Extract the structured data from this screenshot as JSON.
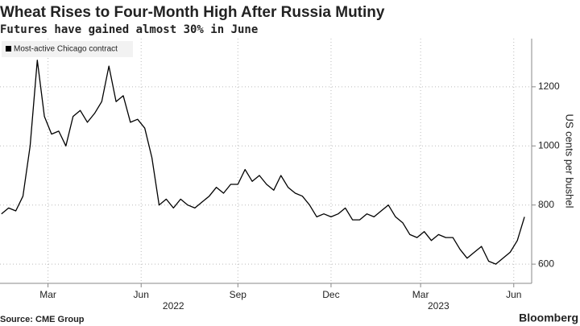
{
  "chart_data": {
    "type": "line",
    "title": "Wheat Rises to Four-Month High After Russia Mutiny",
    "subtitle": "Futures have gained almost 30% in June",
    "y_label": "US cents per bushel",
    "source": "Source: CME Group",
    "brand": "Bloomberg",
    "x": [
      0,
      1,
      2,
      3,
      4,
      5,
      6,
      7,
      8,
      9,
      10,
      11,
      12,
      13,
      14,
      15,
      16,
      17,
      18,
      19,
      20,
      21,
      22,
      23,
      24,
      25,
      26,
      27,
      28,
      29,
      30,
      31,
      32,
      33,
      34,
      35,
      36,
      37,
      38,
      39,
      40,
      41,
      42,
      43,
      44,
      45,
      46,
      47,
      48,
      49,
      50,
      51,
      52,
      53,
      54,
      55,
      56,
      57,
      58,
      59,
      60,
      61,
      62,
      63,
      64,
      65,
      66,
      67,
      68,
      69,
      70,
      71,
      72,
      73
    ],
    "series": [
      {
        "name": "Most-active Chicago contract",
        "color": "#000000",
        "values": [
          770,
          790,
          780,
          830,
          1000,
          1290,
          1100,
          1040,
          1050,
          1000,
          1100,
          1120,
          1080,
          1110,
          1150,
          1270,
          1150,
          1170,
          1080,
          1090,
          1060,
          960,
          800,
          820,
          790,
          820,
          800,
          790,
          810,
          830,
          860,
          840,
          870,
          870,
          920,
          880,
          900,
          870,
          850,
          900,
          860,
          840,
          830,
          800,
          760,
          770,
          760,
          770,
          790,
          750,
          750,
          770,
          760,
          780,
          800,
          760,
          740,
          700,
          690,
          710,
          680,
          700,
          690,
          690,
          650,
          620,
          640,
          660,
          610,
          600,
          620,
          640,
          680,
          760
        ]
      }
    ],
    "xlim": [
      -0.2,
      74
    ],
    "xticks": [
      {
        "value": 6.5,
        "label": "Mar"
      },
      {
        "value": 19.5,
        "label": "Jun"
      },
      {
        "value": 33,
        "label": "Sep"
      },
      {
        "value": 46,
        "label": "Dec"
      },
      {
        "value": 58.5,
        "label": "Mar"
      },
      {
        "value": 71.5,
        "label": "Jun"
      }
    ],
    "year_ticks": [
      {
        "value": 24,
        "label": "2022"
      },
      {
        "value": 61,
        "label": "2023"
      }
    ],
    "ylim": [
      535,
      1363
    ],
    "yticks": [
      600,
      800,
      1000,
      1200
    ],
    "grid": true,
    "legend": "top-left"
  }
}
